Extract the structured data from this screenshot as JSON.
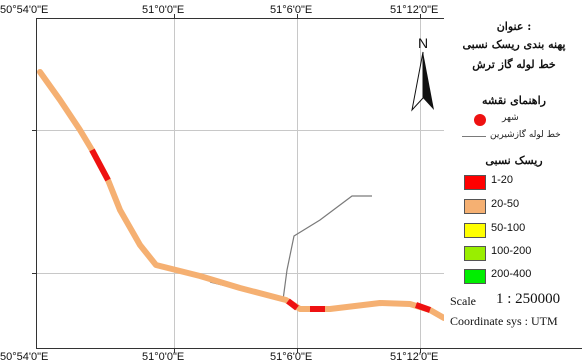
{
  "map": {
    "top_labels": [
      "50°54'0\"E",
      "51°0'0\"E",
      "51°6'0\"E",
      "51°12'0\"E"
    ],
    "bottom_labels": [
      "50°54'0\"E",
      "51°0'0\"E",
      "51°6'0\"E",
      "51°12'0\"E"
    ],
    "north_label": "N"
  },
  "legend": {
    "title_line1": "عنوان :",
    "title_line2": "پهنه بندی ریسک نسبی",
    "title_line3": "خط لوله گاز ترش",
    "map_guide": "راهنمای نقشه",
    "city": "شهر",
    "pipeline": "خط لوله گازشیرین",
    "risk_title": "ریسک نسبی",
    "classes": [
      {
        "label": "1-20",
        "color": "#ff0000"
      },
      {
        "label": "20-50",
        "color": "#f5b072"
      },
      {
        "label": "50-100",
        "color": "#ffff00"
      },
      {
        "label": "100-200",
        "color": "#99ee00"
      },
      {
        "label": "200-400",
        "color": "#00ee00"
      }
    ],
    "scale_label": "Scale",
    "scale_value": "1 : 250000",
    "coord_sys": "Coordinate sys : UTM"
  },
  "colors": {
    "route": "#f5b072",
    "route_high": "#ee1111",
    "sweet_gas": "#7a7a7a",
    "grid": "#c8c8c8",
    "frame": "#333333"
  }
}
